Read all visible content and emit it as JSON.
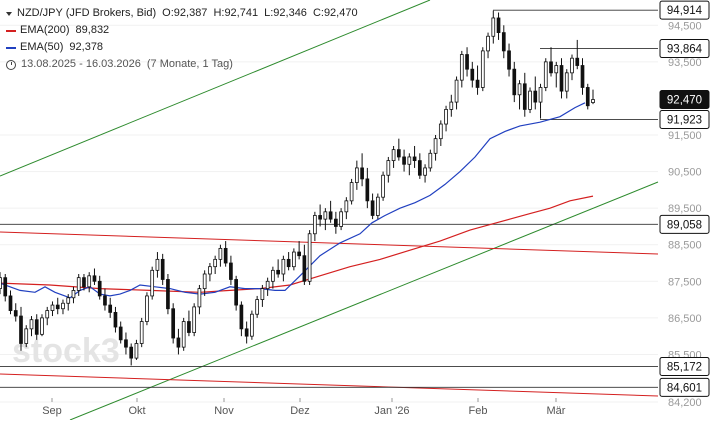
{
  "header": {
    "symbol": "NZD/JPY (JFD Brokers, Bid)",
    "ohlc": {
      "o_label": "O:",
      "o": "92,387",
      "h_label": "H:",
      "h": "92,741",
      "l_label": "L:",
      "l": "92,346",
      "c_label": "C:",
      "c": "92,470"
    },
    "indicators": [
      {
        "name": "EMA(200)",
        "value": "89,832",
        "color": "#d42020"
      },
      {
        "name": "EMA(50)",
        "value": "92,378",
        "color": "#2140c0"
      }
    ],
    "period": "13.08.2025 - 16.03.2026",
    "period_detail": "(7 Monate, 1 Tag)"
  },
  "chart_data": {
    "type": "candlestick",
    "y_axis_ticks": [
      "94,500",
      "93,500",
      "91,500",
      "90,500",
      "89,500",
      "88,500",
      "87,500",
      "86,500",
      "85,500",
      "84,200"
    ],
    "x_axis_ticks": [
      "Sep",
      "Okt",
      "Nov",
      "Dez",
      "Jan '26",
      "Feb",
      "Mär"
    ],
    "price_labels": [
      {
        "value": "94,914",
        "style": "outline"
      },
      {
        "value": "93,864",
        "style": "outline"
      },
      {
        "value": "92,470",
        "style": "filled"
      },
      {
        "value": "91,923",
        "style": "outline"
      },
      {
        "value": "89,058",
        "style": "outline"
      },
      {
        "value": "85,172",
        "style": "outline"
      },
      {
        "value": "84,601",
        "style": "outline"
      }
    ],
    "ema50": [
      [
        0,
        87.45
      ],
      [
        10,
        87.35
      ],
      [
        20,
        87.25
      ],
      [
        35,
        87.2
      ],
      [
        45,
        87.35
      ],
      [
        55,
        87.2
      ],
      [
        70,
        87.05
      ],
      [
        80,
        87.25
      ],
      [
        90,
        87.35
      ],
      [
        100,
        87.15
      ],
      [
        110,
        87.1
      ],
      [
        120,
        87.15
      ],
      [
        130,
        87.25
      ],
      [
        140,
        87.4
      ],
      [
        155,
        87.35
      ],
      [
        170,
        87.3
      ],
      [
        185,
        87.2
      ],
      [
        200,
        87.15
      ],
      [
        215,
        87.2
      ],
      [
        230,
        87.35
      ],
      [
        245,
        87.3
      ],
      [
        260,
        87.3
      ],
      [
        275,
        87.25
      ],
      [
        285,
        87.25
      ],
      [
        300,
        87.65
      ],
      [
        320,
        88.2
      ],
      [
        340,
        88.55
      ],
      [
        360,
        88.8
      ],
      [
        372,
        89.1
      ],
      [
        385,
        89.3
      ],
      [
        400,
        89.5
      ],
      [
        415,
        89.65
      ],
      [
        430,
        89.85
      ],
      [
        445,
        90.15
      ],
      [
        460,
        90.5
      ],
      [
        475,
        90.9
      ],
      [
        490,
        91.4
      ],
      [
        505,
        91.6
      ],
      [
        520,
        91.75
      ],
      [
        540,
        91.85
      ],
      [
        560,
        92.0
      ],
      [
        575,
        92.25
      ],
      [
        585,
        92.38
      ]
    ],
    "ema200": [
      [
        0,
        87.45
      ],
      [
        50,
        87.4
      ],
      [
        100,
        87.3
      ],
      [
        150,
        87.25
      ],
      [
        200,
        87.2
      ],
      [
        230,
        87.25
      ],
      [
        260,
        87.3
      ],
      [
        290,
        87.4
      ],
      [
        320,
        87.65
      ],
      [
        350,
        87.9
      ],
      [
        380,
        88.1
      ],
      [
        410,
        88.35
      ],
      [
        440,
        88.6
      ],
      [
        470,
        88.9
      ],
      [
        490,
        89.05
      ],
      [
        510,
        89.2
      ],
      [
        530,
        89.35
      ],
      [
        550,
        89.5
      ],
      [
        570,
        89.7
      ],
      [
        593,
        89.83
      ]
    ],
    "candles": [
      [
        87.3,
        87.75,
        87.15,
        87.6
      ],
      [
        87.6,
        87.7,
        86.95,
        87.1
      ],
      [
        87.1,
        87.25,
        86.6,
        86.7
      ],
      [
        86.7,
        86.9,
        86.4,
        86.55
      ],
      [
        86.55,
        86.8,
        85.6,
        85.8
      ],
      [
        85.8,
        86.3,
        85.7,
        86.2
      ],
      [
        86.2,
        86.55,
        86.0,
        86.45
      ],
      [
        86.45,
        86.6,
        85.9,
        86.05
      ],
      [
        86.05,
        86.6,
        86.0,
        86.5
      ],
      [
        86.5,
        86.8,
        86.3,
        86.7
      ],
      [
        86.7,
        86.95,
        86.55,
        86.85
      ],
      [
        86.85,
        87.05,
        86.6,
        86.75
      ],
      [
        86.75,
        87.0,
        86.6,
        86.9
      ],
      [
        86.9,
        87.15,
        86.7,
        87.05
      ],
      [
        87.05,
        87.35,
        86.9,
        87.25
      ],
      [
        87.25,
        87.7,
        87.1,
        87.6
      ],
      [
        87.6,
        87.7,
        87.25,
        87.35
      ],
      [
        87.35,
        87.75,
        87.2,
        87.65
      ],
      [
        87.65,
        87.85,
        87.4,
        87.5
      ],
      [
        87.5,
        87.65,
        87.0,
        87.1
      ],
      [
        87.1,
        87.3,
        86.7,
        86.85
      ],
      [
        86.85,
        87.05,
        86.5,
        86.65
      ],
      [
        86.65,
        86.8,
        86.1,
        86.25
      ],
      [
        86.25,
        86.4,
        85.8,
        85.9
      ],
      [
        85.9,
        86.1,
        85.5,
        85.7
      ],
      [
        85.7,
        85.8,
        85.2,
        85.4
      ],
      [
        85.4,
        85.9,
        85.35,
        85.8
      ],
      [
        85.8,
        86.5,
        85.7,
        86.4
      ],
      [
        86.4,
        87.2,
        86.3,
        87.1
      ],
      [
        87.1,
        87.9,
        87.0,
        87.8
      ],
      [
        87.8,
        88.3,
        87.6,
        88.1
      ],
      [
        88.1,
        88.25,
        87.4,
        87.55
      ],
      [
        87.55,
        87.7,
        86.6,
        86.75
      ],
      [
        86.75,
        86.9,
        85.8,
        85.95
      ],
      [
        85.95,
        86.2,
        85.5,
        85.7
      ],
      [
        85.7,
        86.5,
        85.6,
        86.4
      ],
      [
        86.4,
        86.7,
        86.0,
        86.1
      ],
      [
        86.1,
        86.9,
        86.0,
        86.8
      ],
      [
        86.8,
        87.4,
        86.6,
        87.3
      ],
      [
        87.3,
        87.8,
        87.1,
        87.7
      ],
      [
        87.7,
        88.0,
        87.5,
        87.9
      ],
      [
        87.9,
        88.2,
        87.7,
        88.1
      ],
      [
        88.1,
        88.5,
        87.9,
        88.4
      ],
      [
        88.4,
        88.6,
        87.9,
        88.0
      ],
      [
        88.0,
        88.2,
        87.4,
        87.55
      ],
      [
        87.55,
        87.65,
        86.7,
        86.85
      ],
      [
        86.85,
        86.95,
        86.0,
        86.2
      ],
      [
        86.2,
        86.4,
        85.8,
        86.0
      ],
      [
        86.0,
        86.7,
        85.9,
        86.6
      ],
      [
        86.6,
        87.1,
        86.5,
        87.0
      ],
      [
        87.0,
        87.4,
        86.8,
        87.3
      ],
      [
        87.3,
        87.6,
        87.1,
        87.5
      ],
      [
        87.5,
        87.9,
        87.3,
        87.8
      ],
      [
        87.8,
        88.1,
        87.6,
        87.7
      ],
      [
        87.7,
        88.2,
        87.5,
        88.1
      ],
      [
        88.1,
        88.3,
        87.8,
        87.9
      ],
      [
        87.9,
        88.4,
        87.8,
        88.3
      ],
      [
        88.3,
        88.6,
        88.1,
        88.2
      ],
      [
        88.2,
        88.5,
        87.4,
        87.5
      ],
      [
        87.5,
        88.9,
        87.4,
        88.8
      ],
      [
        88.8,
        89.4,
        88.6,
        89.3
      ],
      [
        89.3,
        89.6,
        89.0,
        89.2
      ],
      [
        89.2,
        89.5,
        88.9,
        89.4
      ],
      [
        89.4,
        89.7,
        89.1,
        89.2
      ],
      [
        89.2,
        89.4,
        88.8,
        89.0
      ],
      [
        89.0,
        89.5,
        88.9,
        89.4
      ],
      [
        89.4,
        89.8,
        89.2,
        89.7
      ],
      [
        89.7,
        90.3,
        89.6,
        90.2
      ],
      [
        90.2,
        90.8,
        90.0,
        90.6
      ],
      [
        90.6,
        91.0,
        90.1,
        90.3
      ],
      [
        90.3,
        90.6,
        89.5,
        89.7
      ],
      [
        89.7,
        89.9,
        89.2,
        89.3
      ],
      [
        89.3,
        89.9,
        89.2,
        89.8
      ],
      [
        89.8,
        90.5,
        89.7,
        90.4
      ],
      [
        90.4,
        90.9,
        90.2,
        90.8
      ],
      [
        90.8,
        91.2,
        90.6,
        91.1
      ],
      [
        91.1,
        91.4,
        90.8,
        90.9
      ],
      [
        90.9,
        91.1,
        90.5,
        90.7
      ],
      [
        90.7,
        91.0,
        90.4,
        90.9
      ],
      [
        90.9,
        91.2,
        90.6,
        90.8
      ],
      [
        90.8,
        91.0,
        90.3,
        90.4
      ],
      [
        90.4,
        90.7,
        90.2,
        90.6
      ],
      [
        90.6,
        91.1,
        90.5,
        91.0
      ],
      [
        91.0,
        91.5,
        90.8,
        91.4
      ],
      [
        91.4,
        91.9,
        91.2,
        91.8
      ],
      [
        91.8,
        92.3,
        91.6,
        92.2
      ],
      [
        92.2,
        92.6,
        92.0,
        92.4
      ],
      [
        92.4,
        93.1,
        92.2,
        93.0
      ],
      [
        93.0,
        93.8,
        92.8,
        93.7
      ],
      [
        93.7,
        93.9,
        93.1,
        93.3
      ],
      [
        93.3,
        93.5,
        92.8,
        93.0
      ],
      [
        93.0,
        93.4,
        92.6,
        92.8
      ],
      [
        92.8,
        93.9,
        92.7,
        93.8
      ],
      [
        93.8,
        94.3,
        93.6,
        94.2
      ],
      [
        94.2,
        94.9,
        94.0,
        94.7
      ],
      [
        94.7,
        94.85,
        94.1,
        94.3
      ],
      [
        94.3,
        94.5,
        93.6,
        93.8
      ],
      [
        93.8,
        94.0,
        93.1,
        93.3
      ],
      [
        93.3,
        93.5,
        92.4,
        92.6
      ],
      [
        92.6,
        93.0,
        92.2,
        92.9
      ],
      [
        92.9,
        93.2,
        92.0,
        92.2
      ],
      [
        92.2,
        92.8,
        92.1,
        92.7
      ],
      [
        92.7,
        93.1,
        92.2,
        92.4
      ],
      [
        92.4,
        92.9,
        91.95,
        92.8
      ],
      [
        92.8,
        93.6,
        92.7,
        93.5
      ],
      [
        93.5,
        93.9,
        93.1,
        93.2
      ],
      [
        93.2,
        93.5,
        92.8,
        93.4
      ],
      [
        93.4,
        93.6,
        92.5,
        92.7
      ],
      [
        92.7,
        93.3,
        92.5,
        93.2
      ],
      [
        93.2,
        93.7,
        93.0,
        93.6
      ],
      [
        93.6,
        94.1,
        93.3,
        93.4
      ],
      [
        93.4,
        93.6,
        92.6,
        92.8
      ],
      [
        92.8,
        92.9,
        92.2,
        92.3
      ],
      [
        92.387,
        92.741,
        92.346,
        92.47
      ]
    ],
    "price_range": [
      84.2,
      95.0
    ]
  }
}
